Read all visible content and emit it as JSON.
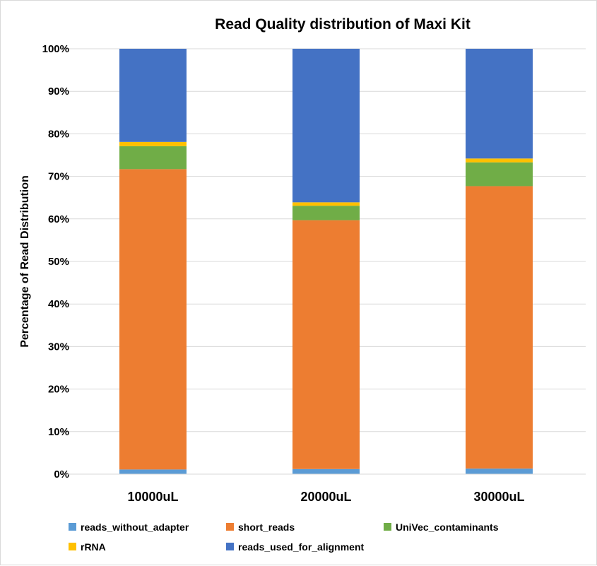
{
  "chart_data": {
    "type": "bar",
    "stacked": "percent",
    "title": "Read Quality distribution of Maxi Kit",
    "xlabel": "",
    "ylabel": "Percentage of Read Distribution",
    "categories": [
      "10000uL",
      "20000uL",
      "30000uL"
    ],
    "ylim": [
      0,
      100
    ],
    "yticks": [
      "0%",
      "10%",
      "20%",
      "30%",
      "40%",
      "50%",
      "60%",
      "70%",
      "80%",
      "90%",
      "100%"
    ],
    "grid": true,
    "legend_position": "bottom",
    "series": [
      {
        "name": "reads_without_adapter",
        "color": "#5b9bd5",
        "values": [
          1.1,
          1.2,
          1.3
        ]
      },
      {
        "name": "short_reads",
        "color": "#ed7d31",
        "values": [
          70.6,
          58.5,
          66.4
        ]
      },
      {
        "name": "UniVec_contaminants",
        "color": "#70ad47",
        "values": [
          5.4,
          3.4,
          5.6
        ]
      },
      {
        "name": "rRNA",
        "color": "#ffc000",
        "values": [
          1.0,
          0.8,
          0.9
        ]
      },
      {
        "name": "reads_used_for_alignment",
        "color": "#4472c4",
        "values": [
          21.9,
          36.1,
          25.8
        ]
      }
    ]
  }
}
